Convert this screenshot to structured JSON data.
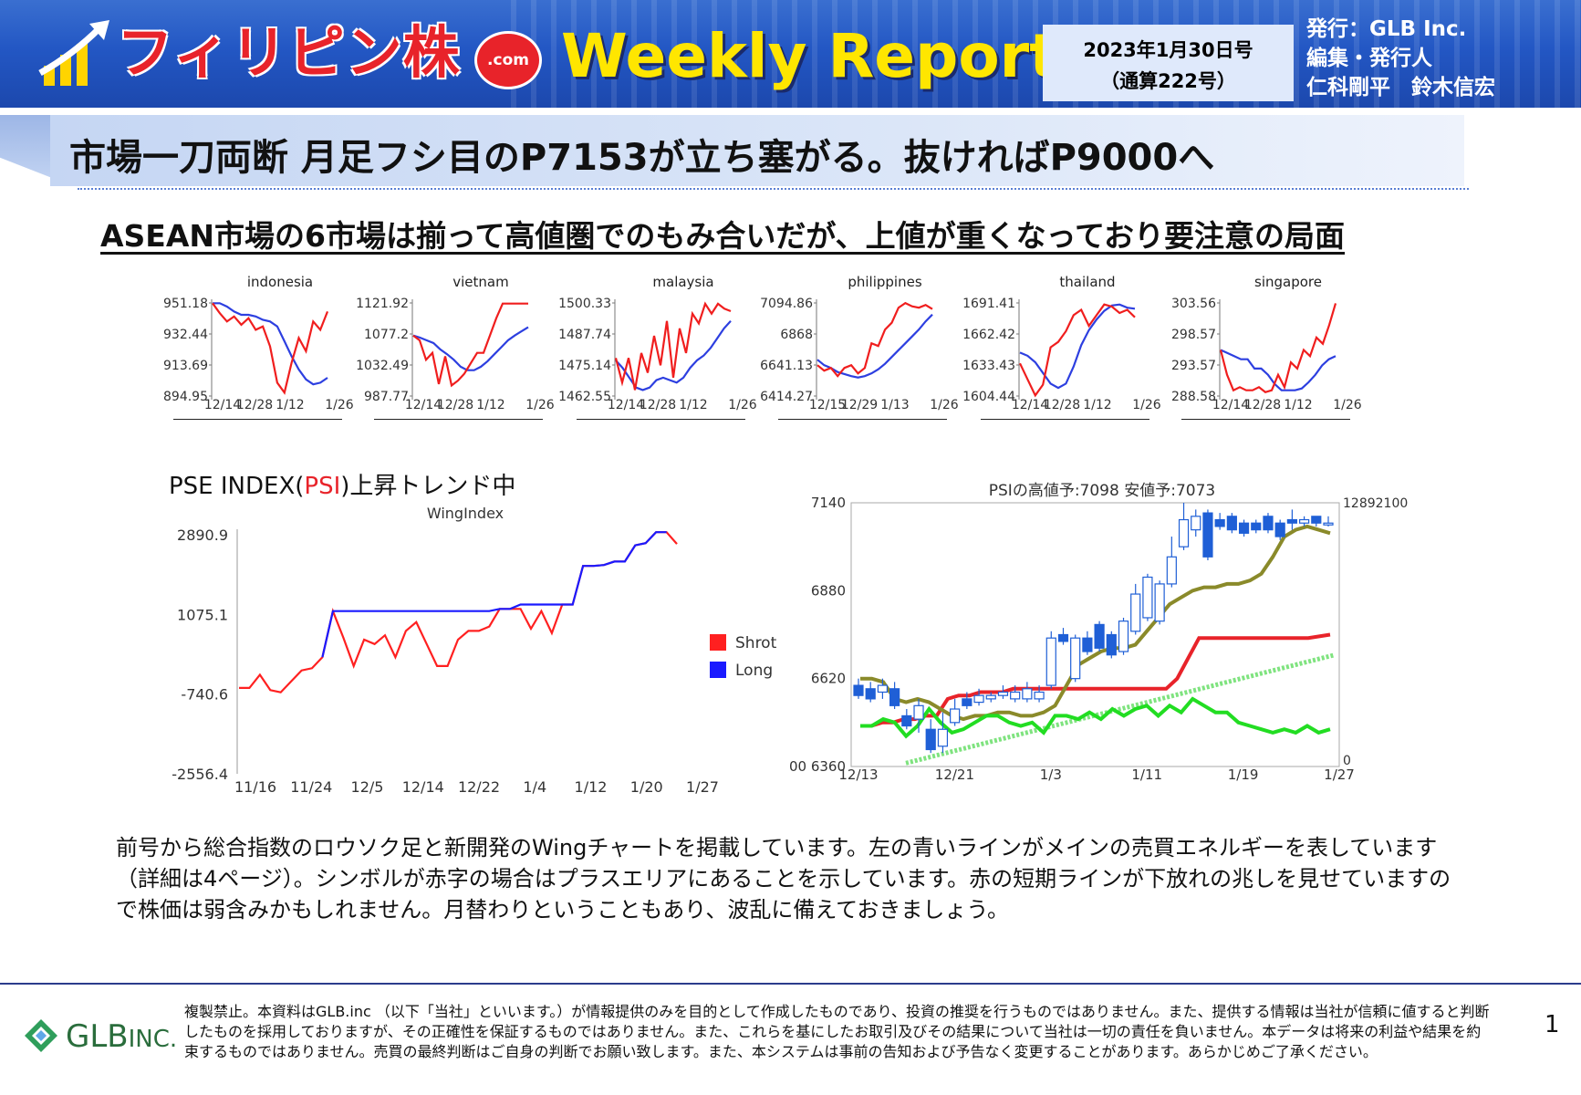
{
  "header": {
    "logo_text": "フィリピン株",
    "logo_dotcom": ".com",
    "title": "Weekly Report",
    "issue_date": "2023年1月30日号",
    "issue_number": "（通算222号）",
    "publisher_line1": "発行：GLB Inc.",
    "publisher_line2": "編集・発行人",
    "publisher_line3": "仁科剛平　鈴木信宏"
  },
  "headline": "市場一刀両断 月足フシ目のP7153が立ち塞がる。抜ければP9000へ",
  "subheadline": "ASEAN市場の6市場は揃って高値圏でのもみ合いだが、上値が重くなっており要注意の局面",
  "mini_charts": [
    {
      "title": "indonesia",
      "yticks": [
        "951.18",
        "932.44",
        "913.69",
        "894.95"
      ],
      "xticks": [
        "12/14",
        "12/28",
        "1/12",
        "1/26"
      ],
      "red": [
        951,
        945,
        940,
        943,
        938,
        942,
        935,
        937,
        925,
        903,
        897,
        915,
        930,
        922,
        940,
        935,
        946
      ],
      "blue": [
        951,
        951,
        949,
        946,
        944,
        944,
        943,
        941,
        940,
        937,
        928,
        919,
        911,
        905,
        902,
        903,
        906
      ]
    },
    {
      "title": "vietnam",
      "yticks": [
        "1121.92",
        "1077.2",
        "1032.49",
        "987.77"
      ],
      "xticks": [
        "12/14",
        "12/28",
        "1/12",
        "1/26"
      ],
      "red": [
        1075,
        1068,
        1040,
        1050,
        1005,
        1045,
        1003,
        1010,
        1020,
        1035,
        1050,
        1050,
        1075,
        1100,
        1121,
        1121,
        1121,
        1121,
        1121
      ],
      "blue": [
        1075,
        1072,
        1068,
        1064,
        1055,
        1048,
        1040,
        1030,
        1025,
        1025,
        1030,
        1038,
        1048,
        1058,
        1068,
        1075,
        1081,
        1087
      ]
    },
    {
      "title": "malaysia",
      "yticks": [
        "1500.33",
        "1487.74",
        "1475.14",
        "1462.55"
      ],
      "xticks": [
        "12/14",
        "12/28",
        "1/12",
        "1/26"
      ],
      "red": [
        1478,
        1468,
        1478,
        1465,
        1480,
        1472,
        1487,
        1475,
        1493,
        1470,
        1490,
        1480,
        1496,
        1492,
        1500,
        1496,
        1500,
        1498,
        1497
      ],
      "blue": [
        1477,
        1474,
        1470,
        1466,
        1465,
        1466,
        1469,
        1470,
        1469,
        1468,
        1470,
        1474,
        1477,
        1479,
        1482,
        1486,
        1490,
        1493
      ]
    },
    {
      "title": "philippines",
      "yticks": [
        "7094.86",
        "6868",
        "6641.13",
        "6414.27"
      ],
      "xticks": [
        "12/15",
        "12/29",
        "1/13",
        "1/26"
      ],
      "red": [
        6640,
        6600,
        6620,
        6560,
        6620,
        6640,
        6580,
        6620,
        6800,
        6780,
        6900,
        6950,
        7060,
        7094,
        7070,
        7060,
        7080,
        7050
      ],
      "blue": [
        6680,
        6640,
        6620,
        6590,
        6575,
        6560,
        6550,
        6560,
        6580,
        6610,
        6650,
        6700,
        6750,
        6800,
        6850,
        6900,
        6960,
        7010
      ]
    },
    {
      "title": "thailand",
      "yticks": [
        "1691.41",
        "1662.42",
        "1633.43",
        "1604.44"
      ],
      "xticks": [
        "12/14",
        "12/28",
        "1/12",
        "1/26"
      ],
      "red": [
        1635,
        1620,
        1605,
        1615,
        1650,
        1655,
        1665,
        1680,
        1685,
        1670,
        1680,
        1690,
        1688,
        1682,
        1685,
        1678
      ],
      "blue": [
        1645,
        1642,
        1636,
        1626,
        1616,
        1612,
        1616,
        1632,
        1652,
        1666,
        1676,
        1684,
        1689,
        1690,
        1687,
        1686
      ]
    },
    {
      "title": "singapore",
      "yticks": [
        "303.56",
        "298.57",
        "293.57",
        "288.58"
      ],
      "xticks": [
        "12/14",
        "12/28",
        "1/12",
        "1/26"
      ],
      "red": [
        296,
        292,
        289.5,
        290,
        289.5,
        289.5,
        290,
        289.2,
        289.5,
        292,
        290,
        294,
        293,
        296,
        295,
        298,
        297,
        300,
        303.5
      ],
      "blue": [
        296,
        295.5,
        295,
        294.5,
        294.5,
        293,
        293,
        292,
        290.5,
        289.5,
        289.5,
        289.5,
        289.8,
        290.8,
        292,
        293.5,
        294.5,
        295
      ]
    }
  ],
  "chart_data": [
    {
      "type": "line",
      "title": "PSE INDEX(PSI)上昇トレンド中",
      "title_prefix": "PSE INDEX(",
      "title_red": "PSI",
      "title_suffix": ")上昇トレンド中",
      "subtitle": "WingIndex",
      "yticks": [
        "2890.9",
        "1075.1",
        "-740.6",
        "-2556.4"
      ],
      "ylim": [
        -2556.4,
        2890.9
      ],
      "xticks": [
        "11/16",
        "11/24",
        "12/5",
        "12/14",
        "12/22",
        "1/4",
        "1/12",
        "1/20",
        "1/27"
      ],
      "series": [
        {
          "name": "Shrot",
          "color": "#ff2020",
          "values": [
            -600,
            -600,
            -300,
            -650,
            -700,
            -450,
            -200,
            -150,
            100,
            1150,
            550,
            -100,
            500,
            400,
            600,
            100,
            700,
            900,
            400,
            -100,
            -100,
            500,
            700,
            700,
            800,
            1200,
            1200,
            1200,
            750,
            1150,
            650,
            1300,
            1300,
            2180,
            2180,
            2200,
            2280,
            2280,
            2650,
            2700,
            2950,
            2950,
            2680
          ]
        },
        {
          "name": "Long",
          "color": "#1a1aff",
          "values": [
            null,
            null,
            null,
            null,
            null,
            null,
            null,
            null,
            100,
            1150,
            1150,
            1150,
            1150,
            1150,
            1150,
            1150,
            1150,
            1150,
            1150,
            1150,
            1150,
            1150,
            1150,
            1150,
            1150,
            1200,
            1200,
            1300,
            1300,
            1300,
            1300,
            1300,
            1300,
            2180,
            2180,
            2200,
            2280,
            2280,
            2650,
            2700,
            2950,
            2950,
            null
          ]
        }
      ],
      "legend": "right"
    },
    {
      "type": "candlestick",
      "title": "PSIの高値予:7098 安値予:7073",
      "yticks_left": [
        "7140",
        "6880",
        "6620",
        "00 6360"
      ],
      "ylim": [
        6360,
        7140
      ],
      "ytick_right_top": "12892100",
      "ytick_right_bottom": "0",
      "xticks": [
        "12/13",
        "12/21",
        "1/3",
        "1/11",
        "1/19",
        "1/27"
      ],
      "candles": [
        {
          "o": 6600,
          "c": 6570,
          "h": 6620,
          "l": 6560
        },
        {
          "o": 6590,
          "c": 6560,
          "h": 6610,
          "l": 6550
        },
        {
          "o": 6580,
          "c": 6600,
          "h": 6620,
          "l": 6560
        },
        {
          "o": 6590,
          "c": 6540,
          "h": 6610,
          "l": 6530
        },
        {
          "o": 6510,
          "c": 6480,
          "h": 6530,
          "l": 6470
        },
        {
          "o": 6500,
          "c": 6540,
          "h": 6560,
          "l": 6460
        },
        {
          "o": 6470,
          "c": 6410,
          "h": 6500,
          "l": 6400
        },
        {
          "o": 6420,
          "c": 6470,
          "h": 6520,
          "l": 6400
        },
        {
          "o": 6490,
          "c": 6530,
          "h": 6560,
          "l": 6480
        },
        {
          "o": 6560,
          "c": 6540,
          "h": 6580,
          "l": 6530
        },
        {
          "o": 6550,
          "c": 6570,
          "h": 6590,
          "l": 6540
        },
        {
          "o": 6560,
          "c": 6570,
          "h": 6580,
          "l": 6550
        },
        {
          "o": 6570,
          "c": 6580,
          "h": 6600,
          "l": 6560
        },
        {
          "o": 6560,
          "c": 6580,
          "h": 6600,
          "l": 6550
        },
        {
          "o": 6560,
          "c": 6590,
          "h": 6610,
          "l": 6550
        },
        {
          "o": 6560,
          "c": 6580,
          "h": 6600,
          "l": 6550
        },
        {
          "o": 6600,
          "c": 6740,
          "h": 6760,
          "l": 6590
        },
        {
          "o": 6750,
          "c": 6730,
          "h": 6770,
          "l": 6720
        },
        {
          "o": 6620,
          "c": 6740,
          "h": 6750,
          "l": 6610
        },
        {
          "o": 6740,
          "c": 6700,
          "h": 6760,
          "l": 6690
        },
        {
          "o": 6780,
          "c": 6710,
          "h": 6790,
          "l": 6700
        },
        {
          "o": 6750,
          "c": 6690,
          "h": 6760,
          "l": 6680
        },
        {
          "o": 6700,
          "c": 6790,
          "h": 6800,
          "l": 6690
        },
        {
          "o": 6760,
          "c": 6870,
          "h": 6900,
          "l": 6750
        },
        {
          "o": 6800,
          "c": 6920,
          "h": 6930,
          "l": 6790
        },
        {
          "o": 6790,
          "c": 6900,
          "h": 6910,
          "l": 6780
        },
        {
          "o": 6900,
          "c": 6980,
          "h": 7040,
          "l": 6890
        },
        {
          "o": 7010,
          "c": 7090,
          "h": 7140,
          "l": 7000
        },
        {
          "o": 7060,
          "c": 7100,
          "h": 7120,
          "l": 7040
        },
        {
          "o": 7110,
          "c": 6980,
          "h": 7120,
          "l": 6970
        },
        {
          "o": 7090,
          "c": 7070,
          "h": 7110,
          "l": 7060
        },
        {
          "o": 7100,
          "c": 7060,
          "h": 7110,
          "l": 7050
        },
        {
          "o": 7080,
          "c": 7050,
          "h": 7090,
          "l": 7040
        },
        {
          "o": 7080,
          "c": 7060,
          "h": 7090,
          "l": 7050
        },
        {
          "o": 7100,
          "c": 7060,
          "h": 7110,
          "l": 7050
        },
        {
          "o": 7080,
          "c": 7040,
          "h": 7090,
          "l": 7030
        },
        {
          "o": 7090,
          "c": 7080,
          "h": 7120,
          "l": 7060
        },
        {
          "o": 7080,
          "c": 7090,
          "h": 7100,
          "l": 7070
        },
        {
          "o": 7100,
          "c": 7080,
          "h": 7100,
          "l": 7070
        },
        {
          "o": 7080,
          "c": 7080,
          "h": 7100,
          "l": 7070
        }
      ],
      "lines": [
        {
          "name": "red",
          "color": "#e8232a",
          "values": [
            6480,
            6480,
            6490,
            6490,
            6500,
            6500,
            6510,
            6510,
            6560,
            6570,
            6570,
            6580,
            6580,
            6580,
            6590,
            6590,
            6590,
            6590,
            6590,
            6590,
            6590,
            6590,
            6590,
            6590,
            6590,
            6590,
            6590,
            6590,
            6590,
            6620,
            6680,
            6740,
            6740,
            6740,
            6740,
            6740,
            6740,
            6740,
            6740,
            6740,
            6740,
            6740,
            6745,
            6750
          ]
        },
        {
          "name": "olive",
          "color": "#8a8a2a",
          "values": [
            6620,
            6620,
            6610,
            6560,
            6550,
            6560,
            6550,
            6530,
            6510,
            6500,
            6510,
            6510,
            6520,
            6520,
            6510,
            6510,
            6520,
            6540,
            6600,
            6660,
            6680,
            6700,
            6710,
            6710,
            6720,
            6760,
            6800,
            6840,
            6860,
            6880,
            6890,
            6890,
            6900,
            6900,
            6910,
            6930,
            6980,
            7040,
            7060,
            7070,
            7060,
            7050
          ]
        },
        {
          "name": "green",
          "color": "#22dd22",
          "values": [
            6480,
            6480,
            6500,
            6490,
            6450,
            6480,
            6530,
            6490,
            6460,
            6470,
            6490,
            6510,
            6510,
            6490,
            6480,
            6490,
            6460,
            6510,
            6510,
            6500,
            6520,
            6500,
            6530,
            6510,
            6530,
            6540,
            6510,
            6540,
            6520,
            6560,
            6540,
            6520,
            6520,
            6490,
            6480,
            6470,
            6460,
            6470,
            6460,
            6480,
            6460,
            6470
          ]
        },
        {
          "name": "trend",
          "color": "#7fe37f",
          "from": 6370,
          "to": 6690
        }
      ]
    }
  ],
  "body_text": "前号から総合指数のロウソク足と新開発のWingチャートを掲載しています。左の青いラインがメインの売買エネルギーを表しています（詳細は4ページ）。シンボルが赤字の場合はプラスエリアにあることを示しています。赤の短期ラインが下放れの兆しを見せていますので株価は弱含みかもしれません。月替わりということもあり、波乱に備えておきましょう。",
  "footer": {
    "logo_text": "GLB",
    "logo_suffix": "INC.",
    "disclaimer": "複製禁止。本資料はGLB.inc （以下「当社」といいます。）が情報提供のみを目的として作成したものであり、投資の推奨を行うものではありません。また、提供する情報は当社が信頼に値すると判断したものを採用しておりますが、その正確性を保証するものではありません。また、これらを基にしたお取引及びその結果について当社は一切の責任を負いません。本データは将来の利益や結果を約束するものではありません。売買の最終判断はご自身の判断でお願い致します。また、本システムは事前の告知および予告なく変更することがあります。あらかじめご了承ください。",
    "page_number": "1"
  },
  "colors": {
    "header_blue": "#2357c4",
    "title_yellow": "#ffe600",
    "logo_red": "#e8232a",
    "series_red": "#ff2020",
    "series_blue": "#1a1aff",
    "candle_blue": "#1f5fd6"
  }
}
